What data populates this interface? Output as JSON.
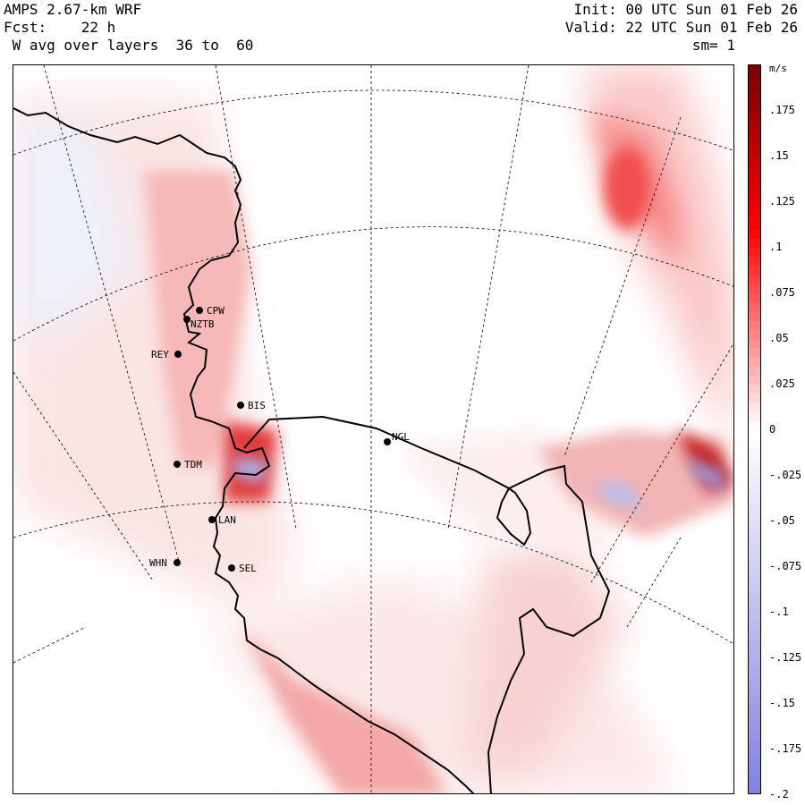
{
  "header": {
    "model": "AMPS 2.67-km WRF",
    "forecast": "Fcst:    22 h",
    "field": " W avg over layers  36 to  60",
    "init": "Init: 00 UTC Sun 01 Feb 26",
    "valid": "Valid: 22 UTC Sun 01 Feb 26",
    "smoothing": "sm= 1"
  },
  "colorbar": {
    "units": "m/s",
    "labels": [
      ".175",
      ".15",
      ".125",
      ".1",
      ".075",
      ".05",
      ".025",
      "0",
      "-.025",
      "-.05",
      "-.075",
      "-.1",
      "-.125",
      "-.15",
      "-.175",
      "-.2"
    ],
    "max": 0.2,
    "min": -0.2,
    "positive_color": "#7a0000",
    "mid_positive_color": "#ff0000",
    "negative_color": "#8080e0",
    "zero_color": "#ffffff"
  },
  "stations": [
    {
      "id": "CPW"
    },
    {
      "id": "NZTB"
    },
    {
      "id": "REY"
    },
    {
      "id": "BIS"
    },
    {
      "id": "NGL"
    },
    {
      "id": "TDM"
    },
    {
      "id": "LAN"
    },
    {
      "id": "WHN"
    },
    {
      "id": "SEL"
    }
  ]
}
